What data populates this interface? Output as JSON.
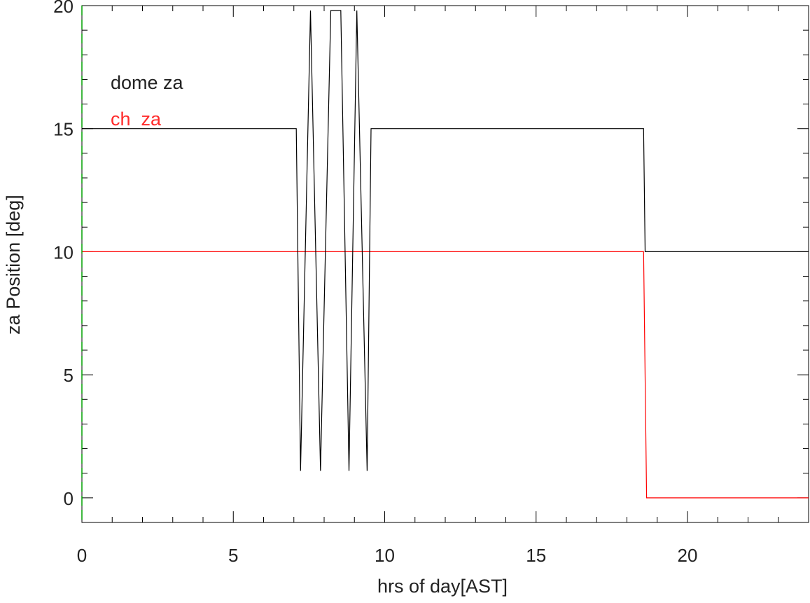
{
  "chart_data": {
    "type": "line",
    "title": "",
    "xlabel": "hrs of day[AST]",
    "ylabel": "za Position [deg]",
    "xlim": [
      0,
      24
    ],
    "ylim": [
      -1,
      20
    ],
    "x_ticks": [
      0,
      5,
      10,
      15,
      20
    ],
    "x_tick_labels": [
      "0",
      "5",
      "10",
      "15",
      "20"
    ],
    "x_minor_step": 1,
    "y_ticks": [
      0,
      5,
      10,
      15,
      20
    ],
    "y_tick_labels": [
      "0",
      "5",
      "10",
      "15",
      "20"
    ],
    "y_minor_step": 1,
    "grid": false,
    "legend_position": "top-left",
    "series": [
      {
        "name": "dome za",
        "color": "#000000",
        "x": [
          0,
          7.08,
          7.22,
          7.55,
          7.88,
          8.22,
          8.55,
          8.82,
          9.08,
          9.42,
          9.55,
          18.55,
          18.6,
          24
        ],
        "y": [
          15,
          15,
          1.1,
          19.8,
          1.1,
          19.8,
          19.8,
          1.1,
          19.8,
          1.1,
          15,
          15,
          10,
          10
        ]
      },
      {
        "name": "ch  za",
        "color": "#ff0000",
        "x": [
          0,
          18.55,
          18.65,
          24
        ],
        "y": [
          10,
          10,
          0,
          0
        ]
      }
    ]
  }
}
